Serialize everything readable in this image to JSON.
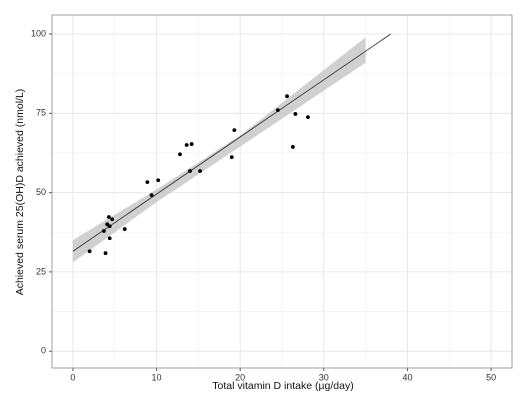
{
  "chart_data": {
    "type": "scatter",
    "x_label": "Total vitamin D intake (µg/day)",
    "y_label": "Achieved serum 25(OH)D achieved (nmol/L)",
    "x": [
      2.0,
      3.7,
      4.1,
      4.3,
      4.7,
      4.4,
      4.4,
      3.9,
      6.2,
      8.9,
      9.4,
      10.2,
      12.8,
      13.6,
      14.2,
      14.0,
      15.2,
      19.3,
      19.0,
      24.5,
      25.6,
      26.6,
      26.3,
      28.1
    ],
    "values": [
      31.5,
      37.9,
      40.0,
      42.3,
      41.6,
      39.4,
      35.6,
      30.9,
      38.5,
      53.3,
      49.2,
      53.9,
      62.1,
      65.0,
      65.3,
      56.8,
      56.8,
      69.7,
      61.2,
      76.0,
      80.4,
      74.8,
      64.4,
      73.8
    ],
    "color": "#000000",
    "fit": {
      "x": [
        0,
        38
      ],
      "y": [
        31.5,
        100
      ],
      "color": "#333333"
    },
    "band": {
      "x": [
        0,
        10,
        20,
        35
      ],
      "lower": [
        28,
        47,
        64.5,
        91
      ],
      "upper": [
        35,
        51,
        68,
        99
      ],
      "color": "#c8c8c8"
    },
    "xlim": [
      -2.5,
      52.5
    ],
    "xticks": [
      0,
      10,
      20,
      30,
      40,
      50
    ],
    "xminor": [
      5,
      15,
      25,
      35,
      45
    ],
    "ylim": [
      -5.3,
      106
    ],
    "yticks": [
      0,
      25,
      50,
      75,
      100
    ],
    "yminor": [
      12.5,
      37.5,
      62.5,
      87.5
    ],
    "grid": true
  }
}
